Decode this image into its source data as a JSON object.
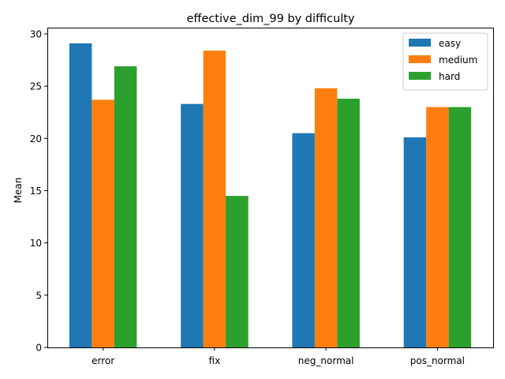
{
  "chart_data": {
    "type": "bar",
    "title": "effective_dim_99 by difficulty",
    "xlabel": "",
    "ylabel": "Mean",
    "categories": [
      "error",
      "fix",
      "neg_normal",
      "pos_normal"
    ],
    "series": [
      {
        "name": "easy",
        "color": "#1f77b4",
        "values": [
          29.1,
          23.3,
          20.5,
          20.1
        ]
      },
      {
        "name": "medium",
        "color": "#ff7f0e",
        "values": [
          23.7,
          28.4,
          24.8,
          23.0
        ]
      },
      {
        "name": "hard",
        "color": "#2ca02c",
        "values": [
          26.9,
          14.5,
          23.8,
          23.0
        ]
      }
    ],
    "ylim": [
      0,
      30.6
    ],
    "yticks": [
      0,
      5,
      10,
      15,
      20,
      25,
      30
    ],
    "grid": false,
    "legend_position": "top-right"
  }
}
